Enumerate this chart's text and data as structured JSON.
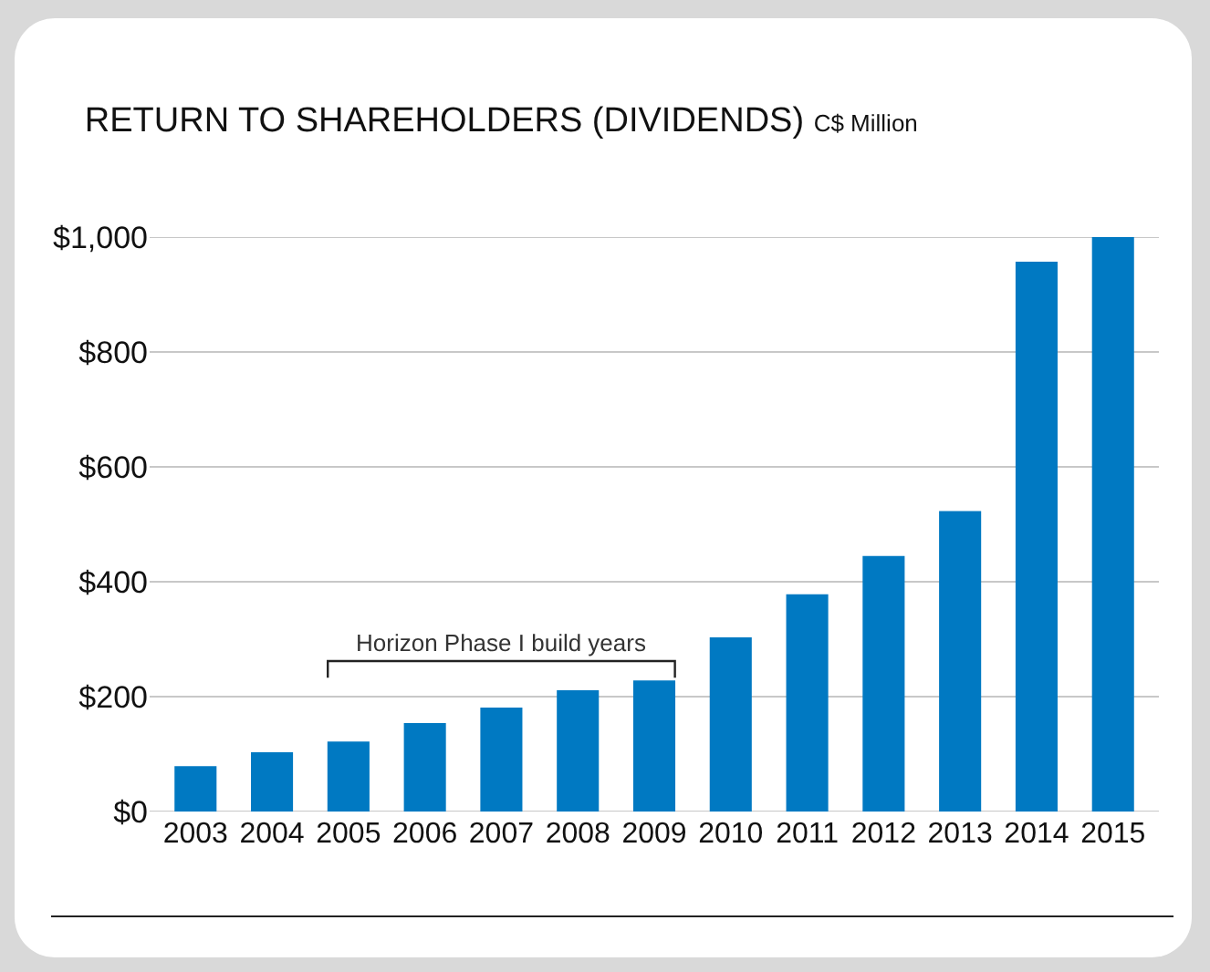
{
  "chart_data": {
    "type": "bar",
    "title": "RETURN TO SHAREHOLDERS (DIVIDENDS)",
    "subtitle": "C$ Million",
    "categories": [
      "2003",
      "2004",
      "2005",
      "2006",
      "2007",
      "2008",
      "2009",
      "2010",
      "2011",
      "2012",
      "2013",
      "2014",
      "2015"
    ],
    "values": [
      79,
      103,
      122,
      154,
      181,
      211,
      228,
      303,
      378,
      445,
      523,
      957,
      1000
    ],
    "color": "#0079c2",
    "ylim": [
      0,
      1000
    ],
    "yticks": [
      {
        "value": 0,
        "label": "$0"
      },
      {
        "value": 200,
        "label": "$200"
      },
      {
        "value": 400,
        "label": "$400"
      },
      {
        "value": 600,
        "label": "$600"
      },
      {
        "value": 800,
        "label": "$800"
      },
      {
        "value": 1000,
        "label": "$1,000"
      }
    ],
    "grid": "y",
    "annotations": [
      "Horizon Phase I build years"
    ]
  }
}
